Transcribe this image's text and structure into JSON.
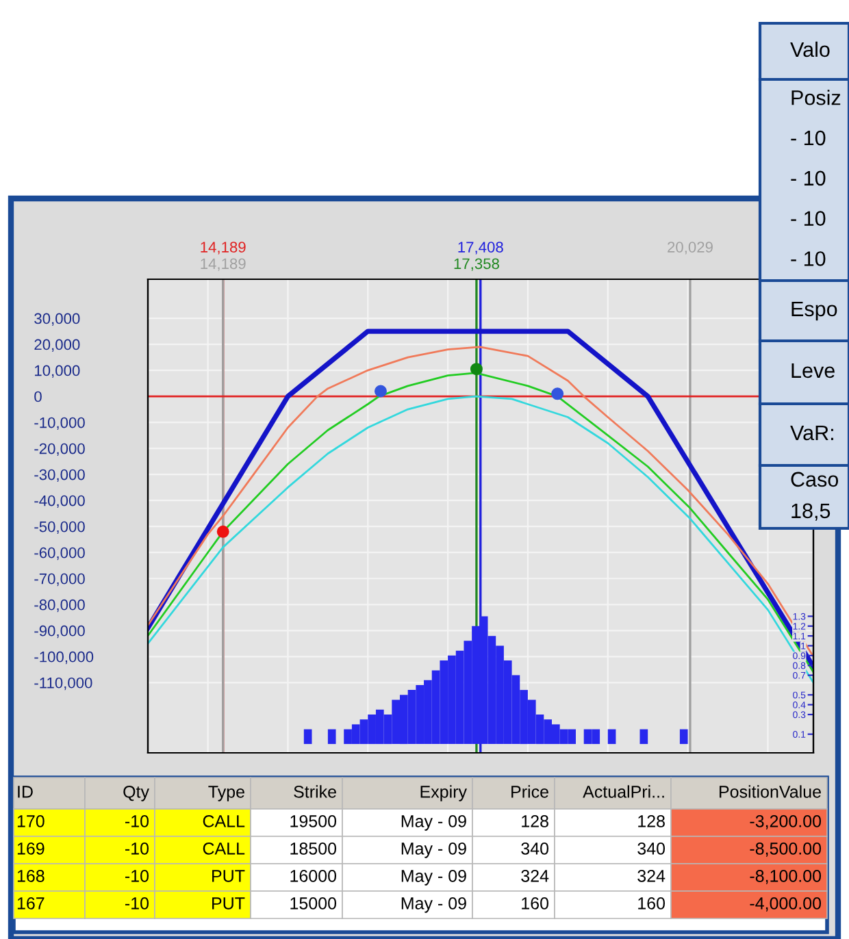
{
  "chart_data": {
    "type": "line",
    "xlim": [
      13250,
      21570
    ],
    "xticks": [
      {
        "value": 14000,
        "label": null
      },
      {
        "value": 15000,
        "label": null
      },
      {
        "value": 16000,
        "label": null
      },
      {
        "value": 17000,
        "label": null
      },
      {
        "value": 18000,
        "label": null
      },
      {
        "value": 19000,
        "label": null
      },
      {
        "value": 20000,
        "label": null
      },
      {
        "value": 21000,
        "label": null
      }
    ],
    "ylim": [
      -137000,
      45000
    ],
    "yticks": [
      {
        "value": 30000,
        "label": "30,000"
      },
      {
        "value": 20000,
        "label": "20,000"
      },
      {
        "value": 10000,
        "label": "10,000"
      },
      0,
      {
        "value": -10000,
        "label": "-10,000"
      },
      {
        "value": -20000,
        "label": "-20,000"
      },
      {
        "value": -30000,
        "label": "-30,000"
      },
      {
        "value": -40000,
        "label": "-40,000"
      },
      {
        "value": -50000,
        "label": "-50,000"
      },
      {
        "value": -60000,
        "label": "-60,000"
      },
      {
        "value": -70000,
        "label": "-70,000"
      },
      {
        "value": -80000,
        "label": "-80,000"
      },
      {
        "value": -90000,
        "label": "-90,000"
      },
      {
        "value": -100000,
        "label": "-100,000"
      },
      {
        "value": -110000,
        "label": "-110,000"
      }
    ],
    "y2lim": [
      -0.09,
      4.73
    ],
    "y2ticks": [
      0.1,
      0.3,
      0.4,
      0.5,
      0.7,
      0.8,
      0.9,
      1,
      1.1,
      1.2,
      1.3
    ],
    "grid": true,
    "series": [
      {
        "color": "#1414c8",
        "x": [
          13250,
          15000,
          16000,
          18500,
          19500,
          21570
        ],
        "values": [
          -89000,
          0,
          25000,
          25000,
          0,
          -104000
        ]
      },
      {
        "color": "#f07a5a",
        "x": [
          13250,
          14000,
          14189,
          14500,
          15000,
          15370,
          15500,
          16000,
          16500,
          17000,
          17400,
          18000,
          18500,
          18700,
          19000,
          19500,
          20000,
          20500,
          21000,
          21570
        ],
        "values": [
          -88000,
          -53000,
          -46000,
          -33000,
          -12000,
          0,
          3000,
          10000,
          15000,
          18000,
          19000,
          15500,
          6000,
          0,
          -8000,
          -21000,
          -36000,
          -53000,
          -72000,
          -100000
        ]
      },
      {
        "color": "#22cc22",
        "x": [
          13250,
          14000,
          14189,
          15000,
          15500,
          16000,
          16140,
          16500,
          17000,
          17350,
          18000,
          18370,
          19000,
          19500,
          20029,
          20500,
          21000,
          21570
        ],
        "values": [
          -92000,
          -60000,
          -52000,
          -26000,
          -13000,
          -3000,
          0,
          4000,
          8000,
          9000,
          4000,
          0,
          -15000,
          -27000,
          -43000,
          -60000,
          -78000,
          -106000
        ]
      },
      {
        "color": "#33d8dd",
        "x": [
          13250,
          14189,
          15000,
          15500,
          16000,
          16500,
          17000,
          17350,
          17800,
          18500,
          19000,
          19500,
          20029,
          20500,
          21000,
          21570
        ],
        "values": [
          -95000,
          -58000,
          -35000,
          -22000,
          -12000,
          -5000,
          -1000,
          0,
          -1000,
          -8000,
          -18000,
          -31000,
          -47000,
          -64000,
          -82000,
          -110000
        ]
      },
      {
        "type": "scatter",
        "color": "#3355dd",
        "x": [
          16160,
          18370
        ],
        "values": [
          2000,
          1000
        ]
      },
      {
        "type": "scatter",
        "color": "#ee1111",
        "x": [
          14189
        ],
        "values": [
          -52000
        ]
      },
      {
        "type": "scatter",
        "color": "#118811",
        "x": [
          17358
        ],
        "values": [
          10500
        ]
      },
      {
        "type": "histogram",
        "axis": "y2",
        "color": "#2828ee",
        "bins": [
          15200,
          15300,
          15400,
          15500,
          15600,
          15700,
          15800,
          15900,
          16000,
          16100,
          16200,
          16300,
          16400,
          16500,
          16600,
          16700,
          16800,
          16900,
          17000,
          17100,
          17200,
          17300,
          17400,
          17500,
          17600,
          17700,
          17800,
          17900,
          18000,
          18100,
          18200,
          18300,
          18400,
          18500,
          18600,
          18700,
          18800,
          18900,
          19000,
          19100,
          19200,
          19300,
          19400,
          19500,
          19600,
          19700,
          19800,
          19900,
          20000
        ],
        "values": [
          0.15,
          0,
          0,
          0.15,
          0,
          0.15,
          0.2,
          0.25,
          0.3,
          0.35,
          0.3,
          0.45,
          0.5,
          0.55,
          0.6,
          0.65,
          0.75,
          0.85,
          0.9,
          0.95,
          1.05,
          1.2,
          1.3,
          1.1,
          1.0,
          0.85,
          0.7,
          0.55,
          0.45,
          0.3,
          0.25,
          0.2,
          0.15,
          0.15,
          0,
          0.15,
          0.15,
          0,
          0.15,
          0,
          0,
          0,
          0.15,
          0,
          0,
          0,
          0,
          0.15
        ]
      }
    ],
    "ref_lines": [
      {
        "axis": "x",
        "value": 14189,
        "label": "14,189",
        "color": "#e02020"
      },
      {
        "axis": "x",
        "value": 14189,
        "label": "14,189",
        "color": "#a0a0a0"
      },
      {
        "axis": "x",
        "value": 17408,
        "label": "17,408",
        "color": "#2020dd"
      },
      {
        "axis": "x",
        "value": 17358,
        "label": "17,358",
        "color": "#228822"
      },
      {
        "axis": "x",
        "value": 20029,
        "label": "20,029",
        "color": "#a0a0a0"
      },
      {
        "axis": "y",
        "value": 0,
        "color": "#e02020"
      }
    ],
    "annotations": [
      "Valo",
      "Posiz",
      "- 10",
      "- 10",
      "- 10",
      "- 10",
      "Espo",
      "Leve",
      "VaR:",
      "Caso",
      "18,5",
      "ID",
      "Qty",
      "Type",
      "Strike",
      "Expiry",
      "Price",
      "ActualPri...",
      "PositionValue",
      "170",
      "-10",
      "CALL",
      "19500",
      "May - 09",
      "128",
      "128",
      "-3,200.00",
      "169",
      "-10",
      "CALL",
      "18500",
      "May - 09",
      "340",
      "340",
      "-8,500.00",
      "168",
      "-10",
      "PUT",
      "16000",
      "May - 09",
      "324",
      "324",
      "-8,100.00",
      "167",
      "-10",
      "PUT",
      "15000",
      "May - 09",
      "160",
      "160",
      "-4,000.00"
    ]
  }
}
